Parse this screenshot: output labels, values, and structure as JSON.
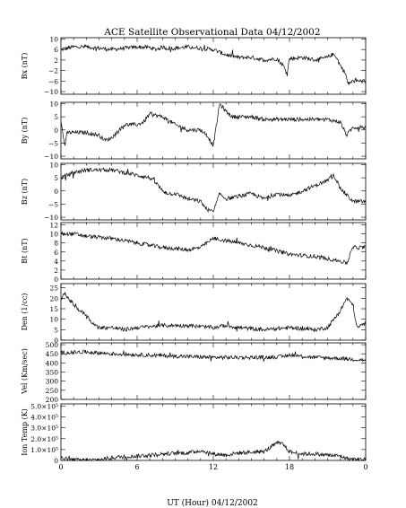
{
  "title": "ACE Satellite Observational Data   04/12/2002",
  "xlabel": "UT (Hour)   04/12/2002",
  "x_ticks": [
    "0",
    "6",
    "12",
    "18",
    "0"
  ],
  "chart_data": [
    {
      "type": "line",
      "ylabel": "Bx (nT)",
      "ylim": [
        -11,
        10.5
      ],
      "yticks": [
        10,
        6,
        2,
        -2,
        -6,
        -10
      ],
      "ytick_labels": [
        "10",
        "6",
        "2",
        "−2",
        "−6",
        "−10"
      ],
      "x": [
        0,
        0.5,
        1,
        2,
        3,
        4,
        5,
        6,
        7,
        7.5,
        8,
        8.3,
        9,
        10,
        11,
        12,
        13,
        13.5,
        14,
        15,
        16,
        17,
        17.5,
        17.8,
        18,
        19,
        20,
        21,
        21.3,
        21.6,
        22,
        22.4,
        22.6,
        23,
        24
      ],
      "values": [
        6,
        6.5,
        7,
        7,
        6.5,
        6,
        6.5,
        7,
        6.8,
        6,
        7,
        6.5,
        6.5,
        7,
        6.5,
        6,
        4,
        3.5,
        3,
        3,
        2,
        2.5,
        0,
        -3,
        2.5,
        3,
        2,
        3,
        4,
        4,
        0,
        -3,
        -7,
        -6,
        -6
      ]
    },
    {
      "type": "line",
      "ylabel": "By (nT)",
      "ylim": [
        -11,
        10.5
      ],
      "yticks": [
        10,
        5,
        0,
        -5,
        -10
      ],
      "ytick_labels": [
        "10",
        "5",
        "0",
        "−5",
        "−10"
      ],
      "x": [
        0,
        0.3,
        0.5,
        1,
        2,
        3,
        3.5,
        4,
        5,
        6,
        6.5,
        7,
        8,
        9,
        10,
        11,
        11.5,
        12,
        12.5,
        13,
        13.5,
        14,
        15,
        16,
        17,
        18,
        19,
        20,
        21,
        22,
        22.5,
        23,
        24
      ],
      "values": [
        3,
        -6,
        -1,
        -1,
        -1,
        -2,
        -4,
        -3,
        2,
        2,
        3,
        6,
        5,
        2,
        0,
        0,
        -2,
        -6,
        10,
        7,
        5,
        5,
        5,
        4,
        4,
        4,
        4,
        4,
        4,
        3,
        -2,
        1,
        1
      ]
    },
    {
      "type": "line",
      "ylabel": "Bz (nT)",
      "ylim": [
        -11,
        10.5
      ],
      "yticks": [
        10,
        5,
        0,
        -5,
        -10
      ],
      "ytick_labels": [
        "10",
        "5",
        "0",
        "−5",
        "−10"
      ],
      "x": [
        0,
        1,
        2,
        3,
        4,
        5,
        6,
        7,
        7.5,
        8,
        8.5,
        9,
        10,
        11,
        11.5,
        12,
        12.5,
        13,
        14,
        15,
        16,
        17,
        18,
        19,
        20,
        21,
        21.5,
        22,
        23,
        24
      ],
      "values": [
        5,
        7,
        8,
        8,
        8,
        7,
        6,
        5,
        3,
        0,
        -1,
        -1,
        -3,
        -4,
        -7,
        -8,
        -1,
        -3,
        -2,
        -1,
        -3,
        -1,
        -2,
        0,
        2,
        4,
        6,
        1,
        -4,
        -4
      ]
    },
    {
      "type": "line",
      "ylabel": "Bt (nT)",
      "ylim": [
        0,
        12.5
      ],
      "yticks": [
        12,
        10,
        8,
        6,
        4,
        2,
        0
      ],
      "ytick_labels": [
        "12",
        "10",
        "8",
        "6",
        "4",
        "2",
        "0"
      ],
      "x": [
        0,
        1,
        2,
        4,
        6,
        8,
        10,
        11,
        12,
        13,
        14,
        16,
        18,
        20,
        21,
        22,
        22.5,
        23,
        24
      ],
      "values": [
        10,
        10,
        9.5,
        9,
        8,
        7,
        6.5,
        7,
        9,
        8.5,
        8,
        7,
        5.5,
        5,
        4.5,
        4,
        3.5,
        7,
        7
      ]
    },
    {
      "type": "line",
      "ylabel": "Den (1/cc)",
      "ylim": [
        0,
        27
      ],
      "yticks": [
        25,
        20,
        15,
        10,
        5,
        0
      ],
      "ytick_labels": [
        "25",
        "20",
        "15",
        "10",
        "5",
        "0"
      ],
      "x": [
        0,
        0.3,
        1,
        1.5,
        2,
        2.5,
        3,
        4,
        5,
        6,
        8,
        10,
        12,
        13,
        14,
        16,
        18,
        20,
        21,
        21.5,
        22,
        22.5,
        23,
        23.3,
        24
      ],
      "values": [
        20,
        22,
        17,
        14,
        12,
        8,
        6,
        6,
        5,
        6,
        7,
        7,
        6,
        7,
        6,
        5,
        6,
        5,
        6,
        10,
        14,
        20,
        17,
        6,
        8
      ]
    },
    {
      "type": "line",
      "ylabel": "Vel (Km/sec)",
      "ylim": [
        200,
        510
      ],
      "yticks": [
        500,
        450,
        400,
        350,
        300,
        250,
        200
      ],
      "ytick_labels": [
        "500",
        "450",
        "400",
        "350",
        "300",
        "250",
        "200"
      ],
      "x": [
        0,
        2,
        4,
        6,
        8,
        10,
        12,
        14,
        16,
        17.5,
        18,
        20,
        22,
        23,
        24
      ],
      "values": [
        455,
        460,
        450,
        445,
        440,
        435,
        430,
        430,
        430,
        435,
        445,
        430,
        425,
        420,
        415
      ]
    },
    {
      "type": "line",
      "ylabel": "Ion Temp (K)",
      "ylim": [
        0,
        520000
      ],
      "yticks": [
        500000,
        400000,
        300000,
        200000,
        100000,
        0
      ],
      "ytick_labels": [
        "5.0×10⁵",
        "4.0×10⁵",
        "3.0×10⁵",
        "2.0×10⁵",
        "1.0×10⁵",
        "0"
      ],
      "x": [
        0,
        0.5,
        1,
        2,
        3,
        4,
        5,
        6,
        8,
        10,
        11,
        12,
        13,
        14,
        16,
        17,
        17.5,
        18,
        19,
        20,
        22,
        22.5,
        23,
        24
      ],
      "values": [
        25000,
        10000,
        5000,
        3000,
        6000,
        25000,
        35000,
        40000,
        60000,
        70000,
        90000,
        60000,
        50000,
        70000,
        80000,
        160000,
        150000,
        80000,
        60000,
        60000,
        40000,
        20000,
        10000,
        10000
      ]
    }
  ]
}
